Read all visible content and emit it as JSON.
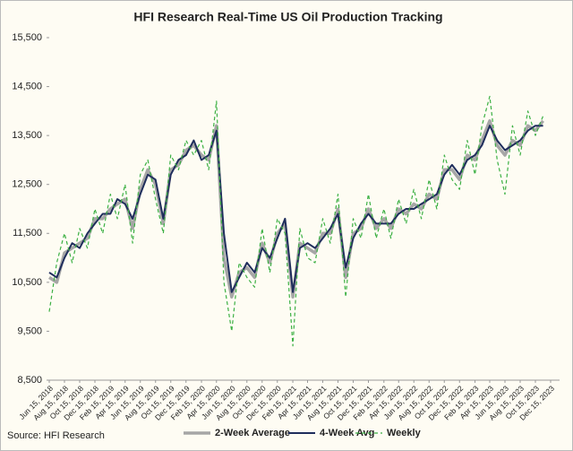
{
  "chart_data": {
    "type": "line",
    "title": "HFI Research Real-Time US Oil Production Tracking",
    "source": "Source: HFI Research",
    "x": [
      "2018-06-15",
      "2018-07-15",
      "2018-08-15",
      "2018-09-15",
      "2018-10-15",
      "2018-11-15",
      "2018-12-15",
      "2019-01-15",
      "2019-02-15",
      "2019-03-15",
      "2019-04-15",
      "2019-05-15",
      "2019-06-15",
      "2019-07-15",
      "2019-08-15",
      "2019-09-15",
      "2019-10-15",
      "2019-11-15",
      "2019-12-15",
      "2020-01-15",
      "2020-02-15",
      "2020-03-15",
      "2020-04-15",
      "2020-05-15",
      "2020-06-15",
      "2020-07-15",
      "2020-08-15",
      "2020-09-15",
      "2020-10-15",
      "2020-11-15",
      "2020-12-15",
      "2021-01-15",
      "2021-02-15",
      "2021-03-15",
      "2021-04-15",
      "2021-05-15",
      "2021-06-15",
      "2021-07-15",
      "2021-08-15",
      "2021-09-15",
      "2021-10-15",
      "2021-11-15",
      "2021-12-15",
      "2022-01-15",
      "2022-02-15",
      "2022-03-15",
      "2022-04-15",
      "2022-05-15",
      "2022-06-15",
      "2022-07-15",
      "2022-08-15",
      "2022-09-15",
      "2022-10-15",
      "2022-11-15",
      "2022-12-15",
      "2023-01-15",
      "2023-02-15",
      "2023-03-15",
      "2023-04-15",
      "2023-05-15",
      "2023-06-15",
      "2023-07-15",
      "2023-08-15",
      "2023-09-15",
      "2023-10-15",
      "2023-11-15"
    ],
    "series": [
      {
        "name": "2-Week Average",
        "color": "#a6a6a6",
        "width": 3.5,
        "values": [
          10600,
          10500,
          11100,
          11200,
          11300,
          11400,
          11800,
          11800,
          12000,
          12100,
          12200,
          11600,
          12400,
          12800,
          12500,
          11700,
          12800,
          12900,
          13200,
          13300,
          13100,
          13000,
          13700,
          11000,
          10200,
          10700,
          10800,
          10600,
          11300,
          10900,
          11500,
          11700,
          10200,
          11300,
          11200,
          11100,
          11500,
          11500,
          12000,
          10600,
          11500,
          11600,
          12000,
          11600,
          11800,
          11600,
          12000,
          11900,
          12100,
          12000,
          12300,
          12200,
          12800,
          12800,
          12600,
          13100,
          13000,
          13400,
          13800,
          13300,
          13100,
          13400,
          13300,
          13700,
          13600,
          13800
        ]
      },
      {
        "name": "4-Week Avg",
        "color": "#1f2d5c",
        "width": 2,
        "values": [
          10700,
          10600,
          11000,
          11300,
          11200,
          11500,
          11700,
          11900,
          11900,
          12200,
          12100,
          11800,
          12300,
          12700,
          12600,
          11800,
          12700,
          13000,
          13100,
          13400,
          13000,
          13100,
          13600,
          11500,
          10300,
          10600,
          10900,
          10700,
          11200,
          11000,
          11400,
          11800,
          10300,
          11200,
          11300,
          11200,
          11400,
          11600,
          11900,
          10800,
          11400,
          11700,
          11900,
          11700,
          11700,
          11700,
          11900,
          12000,
          12000,
          12100,
          12200,
          12300,
          12700,
          12900,
          12700,
          13000,
          13100,
          13300,
          13700,
          13400,
          13200,
          13300,
          13400,
          13600,
          13700,
          13700
        ]
      },
      {
        "name": "Weekly",
        "color": "#3cb043",
        "width": 1.2,
        "dash": "4 3",
        "values": [
          9900,
          10900,
          11500,
          10900,
          11600,
          11200,
          12000,
          11500,
          12300,
          11800,
          12500,
          11300,
          12700,
          13000,
          12200,
          11500,
          13100,
          12800,
          13400,
          13100,
          13400,
          12800,
          14200,
          10500,
          9500,
          10900,
          10600,
          10400,
          11600,
          10700,
          11800,
          11500,
          9200,
          11600,
          11000,
          10900,
          11800,
          11300,
          12300,
          10200,
          11800,
          11400,
          12300,
          11400,
          12000,
          11400,
          12200,
          11700,
          12400,
          11800,
          12600,
          12000,
          13100,
          12600,
          12400,
          13400,
          12700,
          13700,
          14300,
          13000,
          12300,
          13700,
          13100,
          14000,
          13500,
          13900
        ]
      }
    ],
    "ylim": [
      8500,
      15500
    ],
    "yticks": [
      {
        "value": 8500,
        "label": "8,500"
      },
      {
        "value": 9500,
        "label": "9,500"
      },
      {
        "value": 10500,
        "label": "10,500"
      },
      {
        "value": 11500,
        "label": "11,500"
      },
      {
        "value": 12500,
        "label": "12,500"
      },
      {
        "value": 13500,
        "label": "13,500"
      },
      {
        "value": 14500,
        "label": "14,500"
      },
      {
        "value": 15500,
        "label": "15,500"
      }
    ],
    "xlim": [
      "2018-06-15",
      "2023-12-15"
    ],
    "xticks": [
      {
        "value": "2018-06-15",
        "label": "Jun 15, 2018"
      },
      {
        "value": "2018-08-15",
        "label": "Aug 15, 2018"
      },
      {
        "value": "2018-10-15",
        "label": "Oct 15, 2018"
      },
      {
        "value": "2018-12-15",
        "label": "Dec 15, 2018"
      },
      {
        "value": "2019-02-15",
        "label": "Feb 15, 2019"
      },
      {
        "value": "2019-04-15",
        "label": "Apr 15, 2019"
      },
      {
        "value": "2019-06-15",
        "label": "Jun 15, 2019"
      },
      {
        "value": "2019-08-15",
        "label": "Aug 15, 2019"
      },
      {
        "value": "2019-10-15",
        "label": "Oct 15, 2019"
      },
      {
        "value": "2019-12-15",
        "label": "Dec 15, 2019"
      },
      {
        "value": "2020-02-15",
        "label": "Feb 15, 2020"
      },
      {
        "value": "2020-04-15",
        "label": "Apr 15, 2020"
      },
      {
        "value": "2020-06-15",
        "label": "Jun 15, 2020"
      },
      {
        "value": "2020-08-15",
        "label": "Aug 15, 2020"
      },
      {
        "value": "2020-10-15",
        "label": "Oct 15, 2020"
      },
      {
        "value": "2020-12-15",
        "label": "Dec 15, 2020"
      },
      {
        "value": "2021-02-15",
        "label": "Feb 15, 2021"
      },
      {
        "value": "2021-04-15",
        "label": "Apr 15, 2021"
      },
      {
        "value": "2021-06-15",
        "label": "Jun 15, 2021"
      },
      {
        "value": "2021-08-15",
        "label": "Aug 15, 2021"
      },
      {
        "value": "2021-10-15",
        "label": "Oct 15, 2021"
      },
      {
        "value": "2021-12-15",
        "label": "Dec 15, 2021"
      },
      {
        "value": "2022-02-15",
        "label": "Feb 15, 2022"
      },
      {
        "value": "2022-04-15",
        "label": "Apr 15, 2022"
      },
      {
        "value": "2022-06-15",
        "label": "Jun 15, 2022"
      },
      {
        "value": "2022-08-15",
        "label": "Aug 15, 2022"
      },
      {
        "value": "2022-10-15",
        "label": "Oct 15, 2022"
      },
      {
        "value": "2022-12-15",
        "label": "Dec 15, 2022"
      },
      {
        "value": "2023-02-15",
        "label": "Feb 15, 2023"
      },
      {
        "value": "2023-04-15",
        "label": "Apr 15, 2023"
      },
      {
        "value": "2023-06-15",
        "label": "Jun 15, 2023"
      },
      {
        "value": "2023-08-15",
        "label": "Aug 15, 2023"
      },
      {
        "value": "2023-10-15",
        "label": "Oct 15, 2023"
      },
      {
        "value": "2023-12-15",
        "label": "Dec 15, 2023"
      }
    ],
    "grid": false
  }
}
